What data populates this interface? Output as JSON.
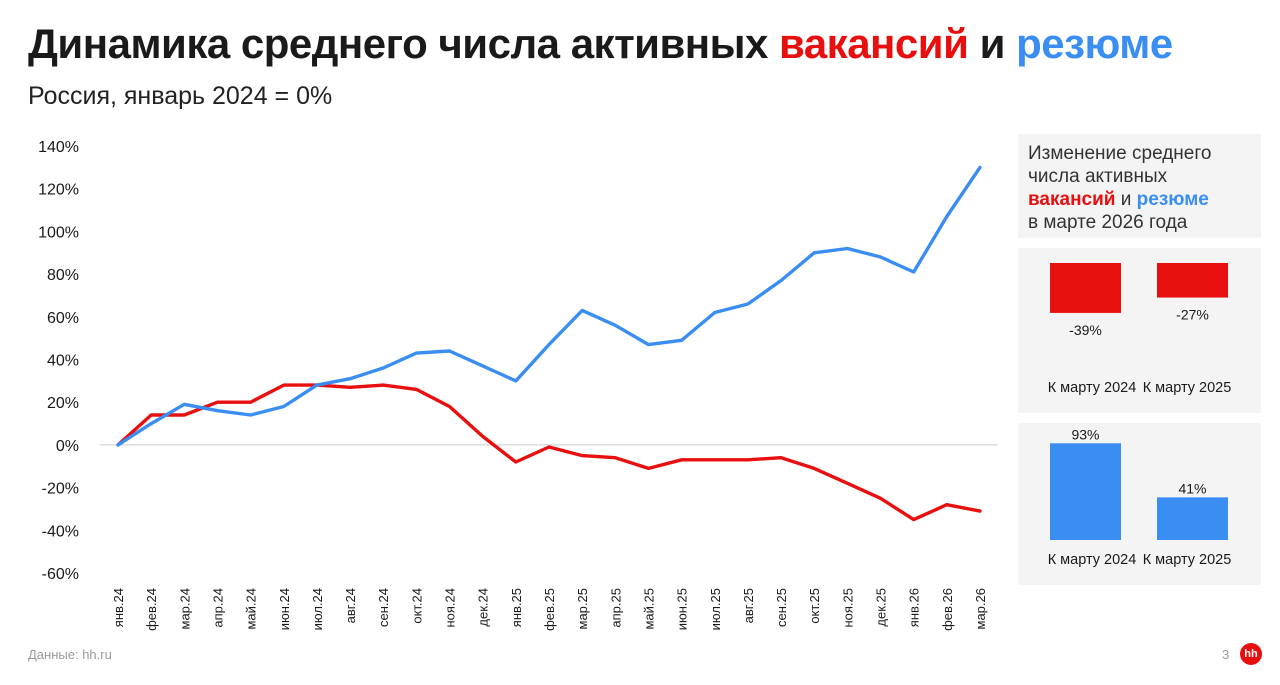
{
  "header": {
    "title_part1": "Динамика среднего числа активных ",
    "title_vac": "вакансий",
    "title_and": " и ",
    "title_res": "резюме",
    "subtitle": "Россия, январь 2024 = 0%"
  },
  "colors": {
    "vacancies": "#e80f0f",
    "resumes": "#3a8ef2",
    "axis": "#cccccc",
    "panel": "#f4f4f4"
  },
  "chart_data": [
    {
      "type": "line",
      "categories": [
        "янв.24",
        "фев.24",
        "мар.24",
        "апр.24",
        "май.24",
        "июн.24",
        "июл.24",
        "авг.24",
        "сен.24",
        "окт.24",
        "ноя.24",
        "дек.24",
        "янв.25",
        "фев.25",
        "мар.25",
        "апр.25",
        "май.25",
        "июн.25",
        "июл.25",
        "авг.25",
        "сен.25",
        "окт.25",
        "ноя.25",
        "дек.25",
        "янв.26",
        "фев.26",
        "мар.26"
      ],
      "yticks": [
        "140%",
        "120%",
        "100%",
        "80%",
        "60%",
        "40%",
        "20%",
        "0%",
        "-20%",
        "-40%",
        "-60%"
      ],
      "ylim": [
        -60,
        140
      ],
      "series": [
        {
          "key": "vacancies",
          "values": [
            0,
            14,
            14,
            20,
            20,
            28,
            28,
            27,
            28,
            26,
            18,
            4,
            -8,
            -1,
            -5,
            -6,
            -11,
            -7,
            -7,
            -7,
            -6,
            -11,
            -18,
            -25,
            -35,
            -28,
            -31
          ]
        },
        {
          "key": "resumes",
          "values": [
            0,
            10,
            19,
            16,
            14,
            18,
            28,
            31,
            36,
            43,
            44,
            37,
            30,
            47,
            63,
            56,
            47,
            49,
            62,
            66,
            77,
            90,
            92,
            88,
            81,
            107,
            130
          ]
        }
      ]
    },
    {
      "type": "bar",
      "categories": [
        "К марту 2024",
        "К марту 2025"
      ],
      "series": [
        {
          "key": "vacancies",
          "values": [
            -39,
            -27
          ],
          "labels": [
            "-39%",
            "-27%"
          ]
        }
      ]
    },
    {
      "type": "bar",
      "categories": [
        "К марту 2024",
        "К марту 2025"
      ],
      "series": [
        {
          "key": "resumes",
          "values": [
            93,
            41
          ],
          "labels": [
            "93%",
            "41%"
          ]
        }
      ]
    }
  ],
  "legend": {
    "line1": "Изменение среднего",
    "line2": "числа активных",
    "vac": "вакансий",
    "and": " и ",
    "res": "резюме",
    "line4": "в марте 2026 года"
  },
  "footer": {
    "source": "Данные: hh.ru",
    "page": "3",
    "logo": "hh"
  }
}
